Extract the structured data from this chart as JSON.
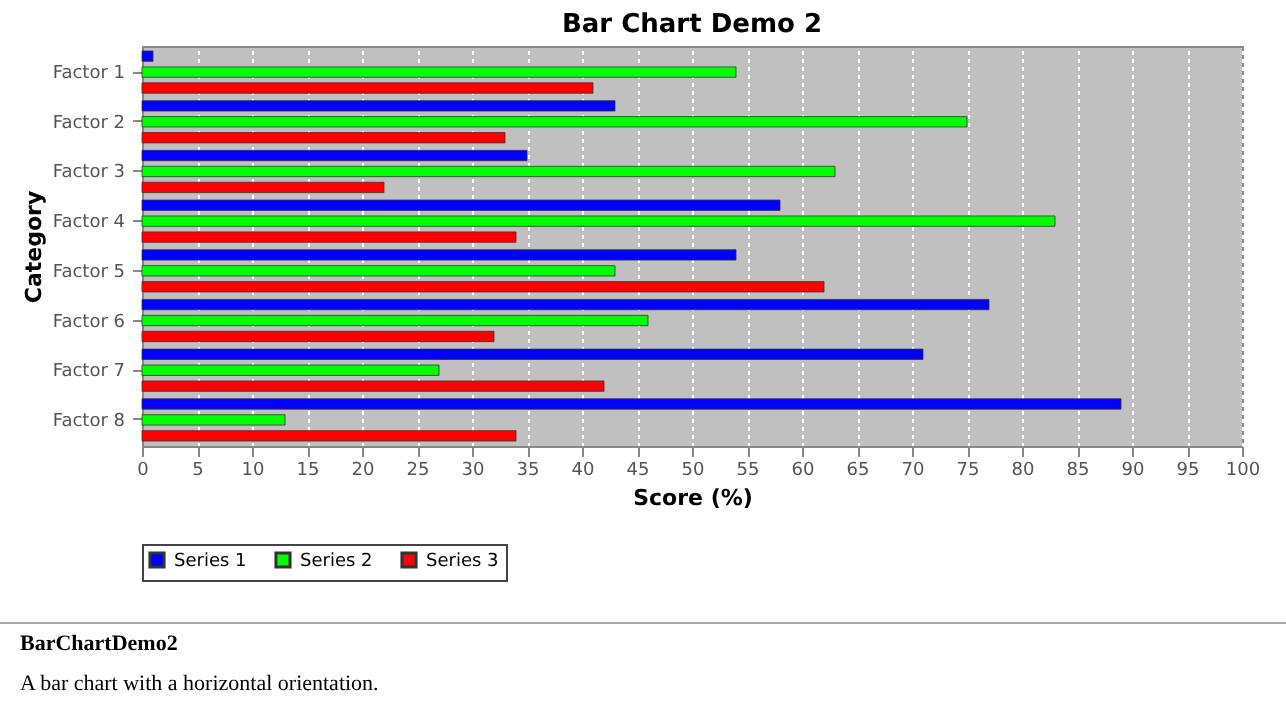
{
  "chart_data": {
    "type": "bar",
    "title": "Bar Chart Demo 2",
    "xlabel": "Score (%)",
    "ylabel": "Category",
    "orientation": "horizontal",
    "categories": [
      "Factor 1",
      "Factor 2",
      "Factor 3",
      "Factor 4",
      "Factor 5",
      "Factor 6",
      "Factor 7",
      "Factor 8"
    ],
    "series": [
      {
        "name": "Series 1",
        "color": "#0000ff",
        "values": [
          1,
          43,
          35,
          58,
          54,
          77,
          71,
          89
        ]
      },
      {
        "name": "Series 2",
        "color": "#00ff00",
        "values": [
          54,
          75,
          63,
          83,
          43,
          46,
          27,
          13
        ]
      },
      {
        "name": "Series 3",
        "color": "#ff0000",
        "values": [
          41,
          33,
          22,
          34,
          62,
          32,
          42,
          34
        ]
      }
    ],
    "xlim": [
      0,
      100
    ],
    "xticks": [
      0,
      5,
      10,
      15,
      20,
      25,
      30,
      35,
      40,
      45,
      50,
      55,
      60,
      65,
      70,
      75,
      80,
      85,
      90,
      95,
      100
    ],
    "grid": "x",
    "legend": "bottom",
    "annotations": [
      "BarChartDemo2",
      "A bar chart with a horizontal orientation."
    ]
  }
}
